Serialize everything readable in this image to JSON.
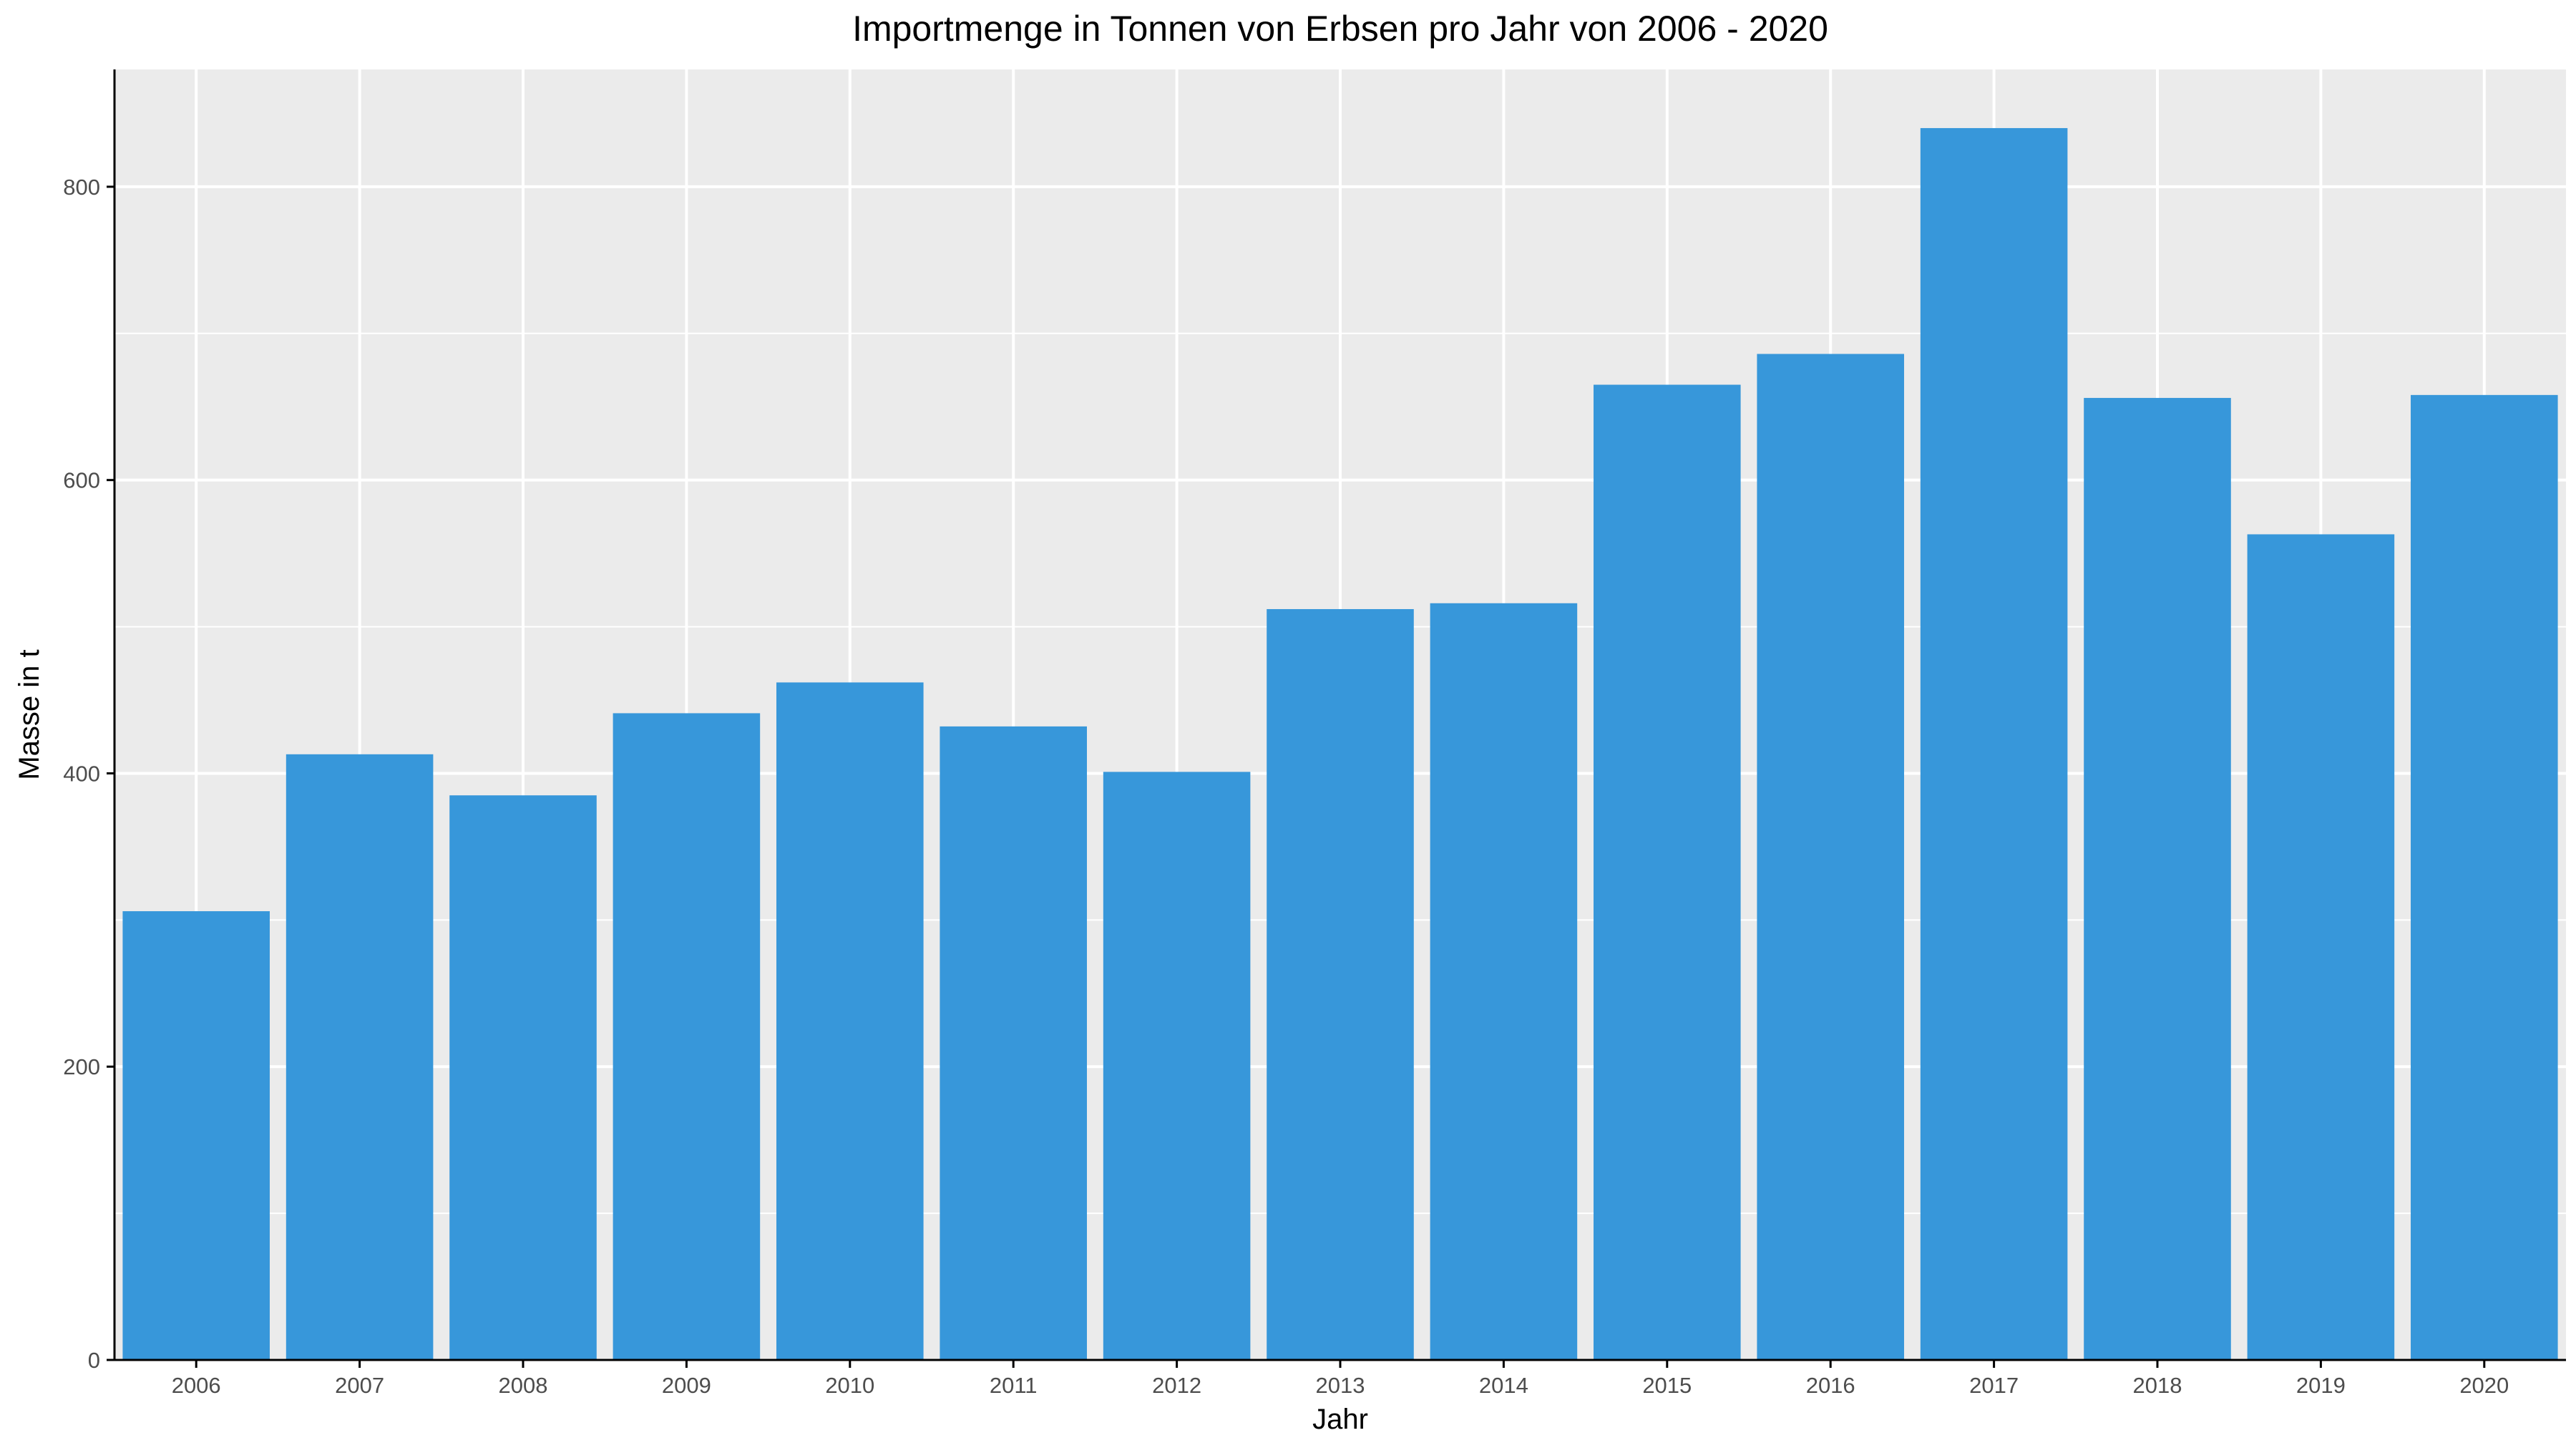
{
  "chart_data": {
    "type": "bar",
    "title": "Importmenge in Tonnen von Erbsen pro Jahr von 2006 - 2020",
    "xlabel": "Jahr",
    "ylabel": "Masse in t",
    "categories": [
      "2006",
      "2007",
      "2008",
      "2009",
      "2010",
      "2011",
      "2012",
      "2013",
      "2014",
      "2015",
      "2016",
      "2017",
      "2018",
      "2019",
      "2020"
    ],
    "values": [
      306,
      413,
      385,
      441,
      462,
      432,
      401,
      512,
      516,
      665,
      686,
      840,
      656,
      563,
      658
    ],
    "ylim": [
      0,
      880
    ],
    "yticks": [
      0,
      200,
      400,
      600,
      800
    ],
    "grid": true,
    "legend": "none",
    "colors": {
      "bar": "#3797da",
      "panel": "#ebebeb",
      "gridline": "#ffffff",
      "axis": "#000000",
      "tick_text": "#4d4d4d",
      "label_text": "#000000"
    }
  }
}
